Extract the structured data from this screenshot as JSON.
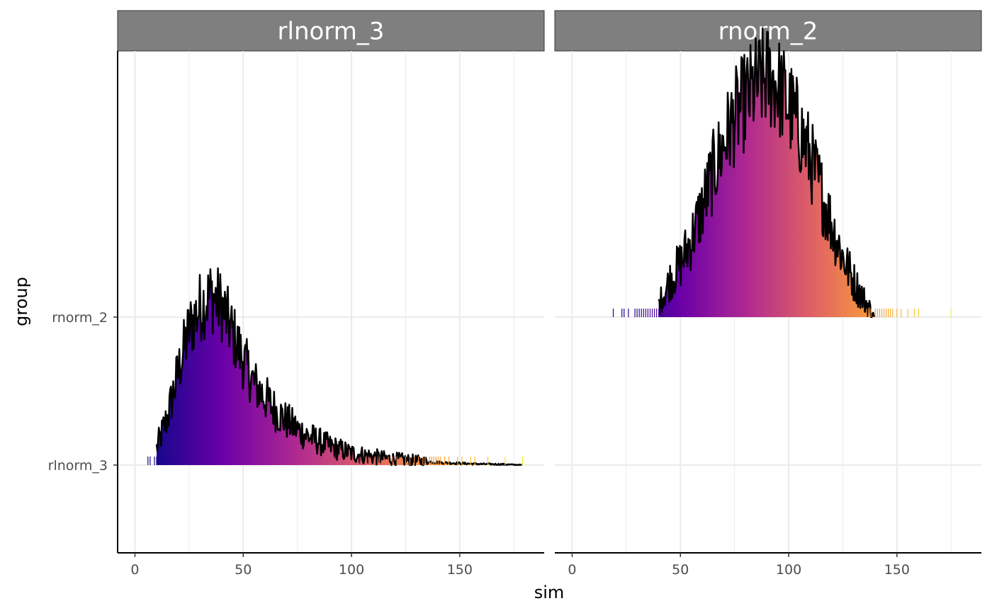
{
  "chart_data": {
    "type": "area",
    "subtype": "ridgeline-histogram-with-rug",
    "xlabel": "sim",
    "ylabel": "group",
    "x_ticks": [
      0,
      50,
      100,
      150
    ],
    "xlim": [
      -8,
      189
    ],
    "y_categories": [
      "rlnorm_3",
      "rnorm_2"
    ],
    "facets": [
      {
        "label": "rlnorm_3",
        "row": "rlnorm_3",
        "x_min": 6,
        "x_max": 179,
        "peak_height": 0.62,
        "density": {
          "x": [
            10,
            15,
            20,
            25,
            30,
            35,
            40,
            45,
            50,
            55,
            60,
            65,
            70,
            75,
            80,
            85,
            90,
            95,
            100,
            105,
            110,
            115,
            120,
            125,
            130,
            135,
            140,
            150,
            160,
            170,
            179
          ],
          "y": [
            0.1,
            0.28,
            0.55,
            0.8,
            0.93,
            1.0,
            0.94,
            0.78,
            0.62,
            0.48,
            0.4,
            0.32,
            0.26,
            0.21,
            0.17,
            0.14,
            0.11,
            0.09,
            0.07,
            0.06,
            0.05,
            0.04,
            0.035,
            0.03,
            0.025,
            0.02,
            0.015,
            0.01,
            0.006,
            0.004,
            0.0
          ]
        },
        "rug_x": [
          6,
          7,
          9,
          10,
          11,
          12,
          13,
          14,
          15,
          16,
          18,
          20,
          22,
          24,
          26,
          28,
          30,
          33,
          36,
          40,
          44,
          48,
          52,
          57,
          62,
          68,
          74,
          80,
          86,
          92,
          98,
          104,
          108,
          111,
          113,
          115,
          117,
          119,
          121,
          123,
          125,
          127,
          129,
          131,
          133,
          134,
          136,
          137,
          138,
          139,
          140,
          141,
          143,
          145,
          149,
          151,
          155,
          157,
          163,
          171,
          179
        ]
      },
      {
        "label": "rnorm_2",
        "row": "rnorm_2",
        "x_min": 19,
        "x_max": 175,
        "peak_height": 0.88,
        "density": {
          "x": [
            40,
            45,
            50,
            55,
            60,
            65,
            70,
            75,
            80,
            85,
            90,
            95,
            100,
            105,
            110,
            115,
            120,
            125,
            130,
            135,
            140
          ],
          "y": [
            0.05,
            0.15,
            0.22,
            0.32,
            0.45,
            0.6,
            0.72,
            0.83,
            0.9,
            0.96,
            1.0,
            0.96,
            0.88,
            0.78,
            0.66,
            0.52,
            0.38,
            0.25,
            0.15,
            0.07,
            0.0
          ]
        },
        "rug_x": [
          19,
          23,
          24,
          26,
          29,
          30,
          31,
          32,
          33,
          34,
          35,
          36,
          37,
          38,
          39,
          40,
          41,
          42,
          43,
          44,
          45,
          46,
          47,
          48,
          49,
          50,
          120,
          122,
          124,
          126,
          128,
          130,
          132,
          134,
          136,
          138,
          140,
          141,
          142,
          143,
          144,
          145,
          146,
          147,
          148,
          150,
          152,
          155,
          158,
          160,
          175
        ]
      }
    ],
    "palette": [
      "#0d0887",
      "#6a00a8",
      "#b12a90",
      "#e16462",
      "#fca636",
      "#f0f921"
    ]
  },
  "colors": {
    "strip_background": "#7f7f7f",
    "strip_border": "#333333",
    "grid": "#ebebeb",
    "axis": "#000000",
    "outline": "#000000"
  }
}
